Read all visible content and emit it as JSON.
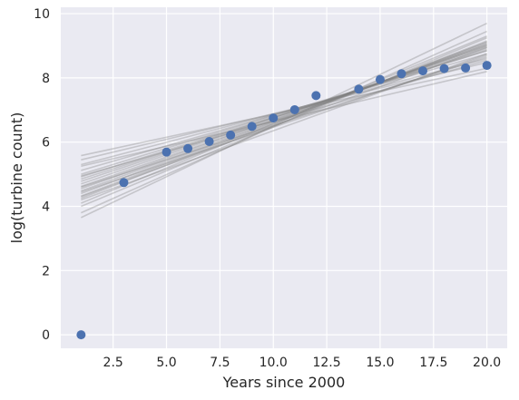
{
  "chart_data": {
    "type": "scatter",
    "xlabel": "Years since 2000",
    "ylabel": "log(turbine count)",
    "xlim": [
      0.05,
      20.95
    ],
    "ylim": [
      -0.42,
      10.2
    ],
    "xticks": [
      2.5,
      5.0,
      7.5,
      10.0,
      12.5,
      15.0,
      17.5,
      20.0
    ],
    "xtick_labels": [
      "2.5",
      "5.0",
      "7.5",
      "10.0",
      "12.5",
      "15.0",
      "17.5",
      "20.0"
    ],
    "yticks": [
      0,
      2,
      4,
      6,
      8,
      10
    ],
    "ytick_labels": [
      "0",
      "2",
      "4",
      "6",
      "8",
      "10"
    ],
    "grid": true,
    "colors": {
      "background": "#EAEAF2",
      "grid": "#FFFFFF",
      "points": "#4C72B0",
      "lines": "#808080"
    },
    "points": {
      "x": [
        1,
        3,
        5,
        6,
        7,
        8,
        9,
        10,
        11,
        12,
        14,
        15,
        16,
        17,
        18,
        19,
        20
      ],
      "y": [
        0.0,
        4.74,
        5.69,
        5.8,
        6.02,
        6.22,
        6.49,
        6.75,
        7.01,
        7.45,
        7.65,
        7.95,
        8.13,
        8.22,
        8.29,
        8.31,
        8.39
      ]
    },
    "fit_lines": [
      {
        "x": [
          1,
          20
        ],
        "y": [
          5.58,
          8.3
        ]
      },
      {
        "x": [
          1,
          20
        ],
        "y": [
          5.45,
          8.48
        ]
      },
      {
        "x": [
          1,
          20
        ],
        "y": [
          5.3,
          8.6
        ]
      },
      {
        "x": [
          1,
          20
        ],
        "y": [
          5.12,
          8.75
        ]
      },
      {
        "x": [
          1,
          20
        ],
        "y": [
          5.0,
          8.85
        ]
      },
      {
        "x": [
          1,
          20
        ],
        "y": [
          4.92,
          8.85
        ]
      },
      {
        "x": [
          1,
          20
        ],
        "y": [
          4.85,
          8.9
        ]
      },
      {
        "x": [
          1,
          20
        ],
        "y": [
          4.78,
          8.95
        ]
      },
      {
        "x": [
          1,
          20
        ],
        "y": [
          4.7,
          9.0
        ]
      },
      {
        "x": [
          1,
          20
        ],
        "y": [
          4.62,
          9.0
        ]
      },
      {
        "x": [
          1,
          20
        ],
        "y": [
          4.55,
          9.05
        ]
      },
      {
        "x": [
          1,
          20
        ],
        "y": [
          4.48,
          9.05
        ]
      },
      {
        "x": [
          1,
          20
        ],
        "y": [
          4.4,
          9.1
        ]
      },
      {
        "x": [
          1,
          20
        ],
        "y": [
          4.32,
          9.12
        ]
      },
      {
        "x": [
          1,
          20
        ],
        "y": [
          4.25,
          9.15
        ]
      },
      {
        "x": [
          1,
          20
        ],
        "y": [
          4.3,
          8.95
        ]
      },
      {
        "x": [
          1,
          20
        ],
        "y": [
          4.45,
          8.7
        ]
      },
      {
        "x": [
          1,
          20
        ],
        "y": [
          4.6,
          8.65
        ]
      },
      {
        "x": [
          1,
          20
        ],
        "y": [
          3.8,
          9.45
        ]
      },
      {
        "x": [
          1,
          20
        ],
        "y": [
          3.65,
          9.7
        ]
      },
      {
        "x": [
          1,
          20
        ],
        "y": [
          4.1,
          9.3
        ]
      },
      {
        "x": [
          1,
          20
        ],
        "y": [
          4.95,
          8.55
        ]
      },
      {
        "x": [
          1,
          20
        ],
        "y": [
          4.2,
          8.75
        ]
      },
      {
        "x": [
          1,
          20
        ],
        "y": [
          5.25,
          8.2
        ]
      },
      {
        "x": [
          1,
          20
        ],
        "y": [
          4.0,
          9.25
        ]
      }
    ]
  }
}
